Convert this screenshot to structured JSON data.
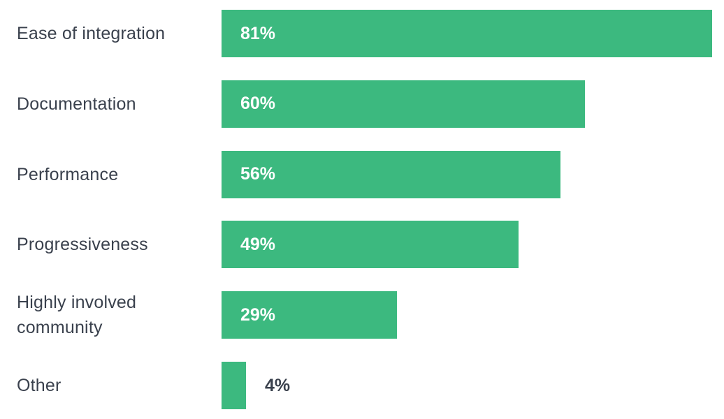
{
  "chart_data": {
    "type": "bar",
    "orientation": "horizontal",
    "categories": [
      "Ease of integration",
      "Documentation",
      "Performance",
      "Progressiveness",
      "Highly involved\ncommunity",
      "Other"
    ],
    "values": [
      81,
      60,
      56,
      49,
      29,
      4
    ],
    "value_labels": [
      "81%",
      "60%",
      "56%",
      "49%",
      "29%",
      "4%"
    ],
    "xlim": [
      0,
      81
    ],
    "grid": false,
    "legend": "none",
    "bar_color": "#3cb97f",
    "label_color": "#3a414d"
  }
}
